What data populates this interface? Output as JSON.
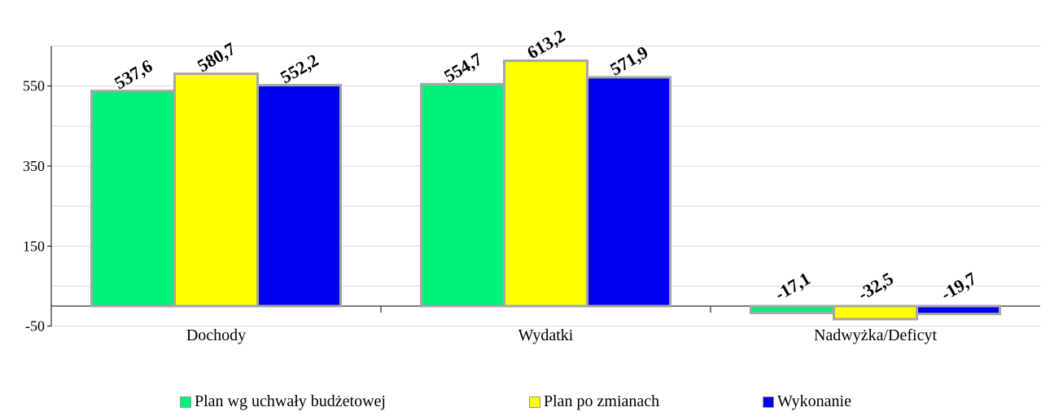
{
  "chart_data": {
    "type": "bar",
    "categories": [
      "Dochody",
      "Wydatki",
      "Nadwyżka/Deficyt"
    ],
    "series": [
      {
        "name": "Plan wg uchwały budżetowej",
        "color": "#00f07c",
        "values": [
          537.6,
          554.7,
          -17.1
        ],
        "labels": [
          "537,6",
          "554,7",
          "-17,1"
        ]
      },
      {
        "name": "Plan po zmianach",
        "color": "#ffff00",
        "values": [
          580.7,
          613.2,
          -32.5
        ],
        "labels": [
          "580,7",
          "613,2",
          "-32,5"
        ]
      },
      {
        "name": "Wykonanie",
        "color": "#0000f0",
        "values": [
          552.2,
          571.9,
          -19.7
        ],
        "labels": [
          "552,2",
          "571,9",
          "-19,7"
        ]
      }
    ],
    "yticks": [
      -50,
      150,
      350,
      550
    ],
    "ytick_labels": [
      "-50",
      "150",
      "350",
      "550"
    ],
    "ylim": [
      -50,
      650
    ],
    "grid": true,
    "legend_position": "bottom"
  }
}
